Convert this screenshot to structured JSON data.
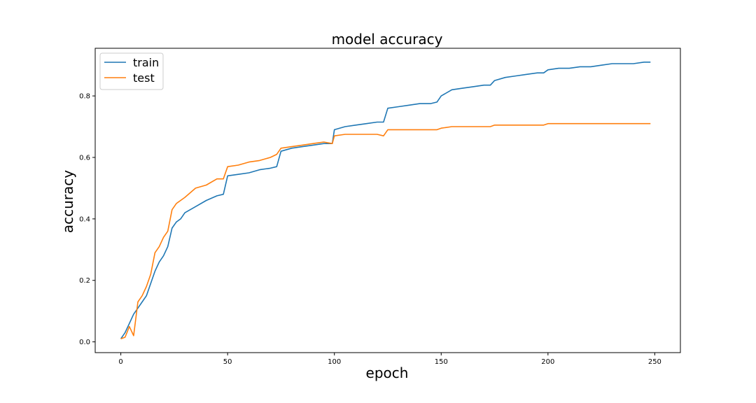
{
  "chart_data": {
    "type": "line",
    "title": "model accuracy",
    "xlabel": "epoch",
    "ylabel": "accuracy",
    "xlim": [
      -12,
      262
    ],
    "ylim": [
      -0.035,
      0.955
    ],
    "xticks": [
      0,
      50,
      100,
      150,
      200,
      250
    ],
    "yticks": [
      0.0,
      0.2,
      0.4,
      0.6,
      0.8
    ],
    "ytick_labels": [
      "0.0",
      "0.2",
      "0.4",
      "0.6",
      "0.8"
    ],
    "grid": false,
    "legend_position": "top-left",
    "x": [
      0,
      2,
      4,
      6,
      8,
      10,
      12,
      14,
      16,
      18,
      20,
      22,
      24,
      26,
      28,
      30,
      35,
      40,
      45,
      48,
      50,
      55,
      60,
      65,
      70,
      73,
      75,
      80,
      85,
      90,
      95,
      99,
      100,
      105,
      110,
      115,
      120,
      123,
      125,
      130,
      135,
      140,
      145,
      148,
      150,
      155,
      160,
      165,
      170,
      173,
      175,
      180,
      185,
      190,
      195,
      198,
      200,
      205,
      210,
      215,
      220,
      225,
      230,
      235,
      240,
      245,
      248
    ],
    "series": [
      {
        "name": "train",
        "color": "#1f77b4",
        "values": [
          0.01,
          0.03,
          0.06,
          0.09,
          0.11,
          0.13,
          0.15,
          0.19,
          0.23,
          0.26,
          0.28,
          0.31,
          0.37,
          0.39,
          0.4,
          0.42,
          0.44,
          0.46,
          0.475,
          0.48,
          0.54,
          0.545,
          0.55,
          0.56,
          0.565,
          0.57,
          0.62,
          0.63,
          0.635,
          0.64,
          0.645,
          0.645,
          0.69,
          0.7,
          0.705,
          0.71,
          0.715,
          0.715,
          0.76,
          0.765,
          0.77,
          0.775,
          0.775,
          0.78,
          0.8,
          0.82,
          0.825,
          0.83,
          0.835,
          0.835,
          0.85,
          0.86,
          0.865,
          0.87,
          0.875,
          0.875,
          0.885,
          0.89,
          0.89,
          0.895,
          0.895,
          0.9,
          0.905,
          0.905,
          0.905,
          0.91,
          0.91
        ]
      },
      {
        "name": "test",
        "color": "#ff7f0e",
        "values": [
          0.01,
          0.015,
          0.05,
          0.02,
          0.13,
          0.15,
          0.18,
          0.22,
          0.29,
          0.31,
          0.34,
          0.36,
          0.43,
          0.45,
          0.46,
          0.47,
          0.5,
          0.51,
          0.53,
          0.53,
          0.57,
          0.575,
          0.585,
          0.59,
          0.6,
          0.61,
          0.63,
          0.635,
          0.64,
          0.645,
          0.65,
          0.645,
          0.67,
          0.675,
          0.675,
          0.675,
          0.675,
          0.67,
          0.69,
          0.69,
          0.69,
          0.69,
          0.69,
          0.69,
          0.695,
          0.7,
          0.7,
          0.7,
          0.7,
          0.7,
          0.705,
          0.705,
          0.705,
          0.705,
          0.705,
          0.705,
          0.71,
          0.71,
          0.71,
          0.71,
          0.71,
          0.71,
          0.71,
          0.71,
          0.71,
          0.71,
          0.71
        ]
      }
    ]
  }
}
